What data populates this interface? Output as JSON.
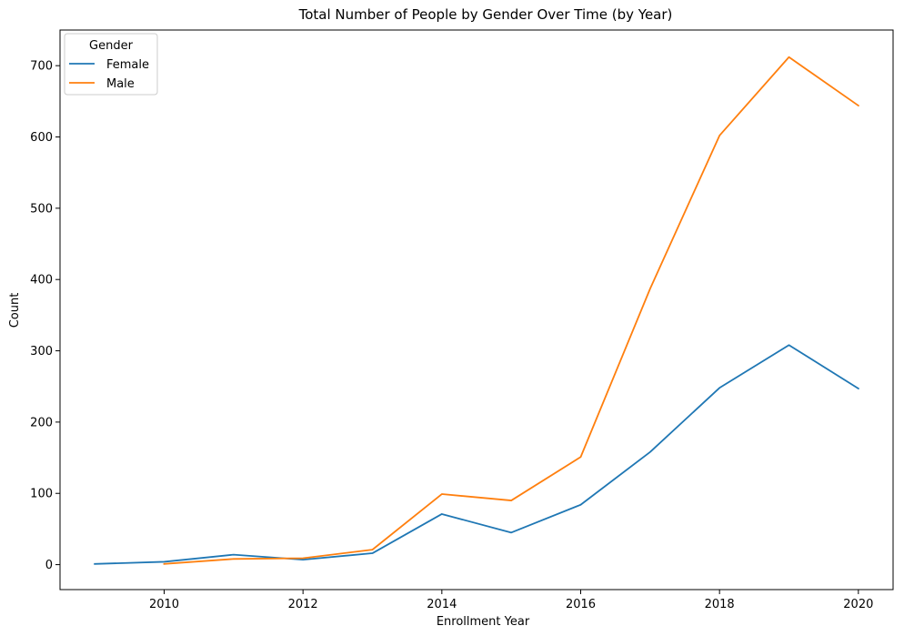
{
  "chart_data": {
    "type": "line",
    "title": "Total Number of People by Gender Over Time (by Year)",
    "xlabel": "Enrollment Year",
    "ylabel": "Count",
    "xlim": [
      2008.5,
      2020.5
    ],
    "ylim": [
      -35,
      750
    ],
    "xticks": [
      2010,
      2012,
      2014,
      2016,
      2018,
      2020
    ],
    "yticks": [
      0,
      100,
      200,
      300,
      400,
      500,
      600,
      700
    ],
    "legend": {
      "title": "Gender",
      "placement": "top-left"
    },
    "grid": false,
    "series": [
      {
        "name": "Female",
        "color": "#1f77b4",
        "x": [
          2009,
          2010,
          2011,
          2012,
          2013,
          2014,
          2015,
          2016,
          2017,
          2018,
          2019,
          2020
        ],
        "values": [
          1,
          4,
          14,
          7,
          16,
          71,
          45,
          84,
          158,
          248,
          308,
          247
        ]
      },
      {
        "name": "Male",
        "color": "#ff7f0e",
        "x": [
          2010,
          2011,
          2012,
          2013,
          2014,
          2015,
          2016,
          2017,
          2018,
          2019,
          2020
        ],
        "values": [
          1,
          8,
          9,
          21,
          99,
          90,
          151,
          387,
          602,
          712,
          644
        ]
      }
    ]
  }
}
